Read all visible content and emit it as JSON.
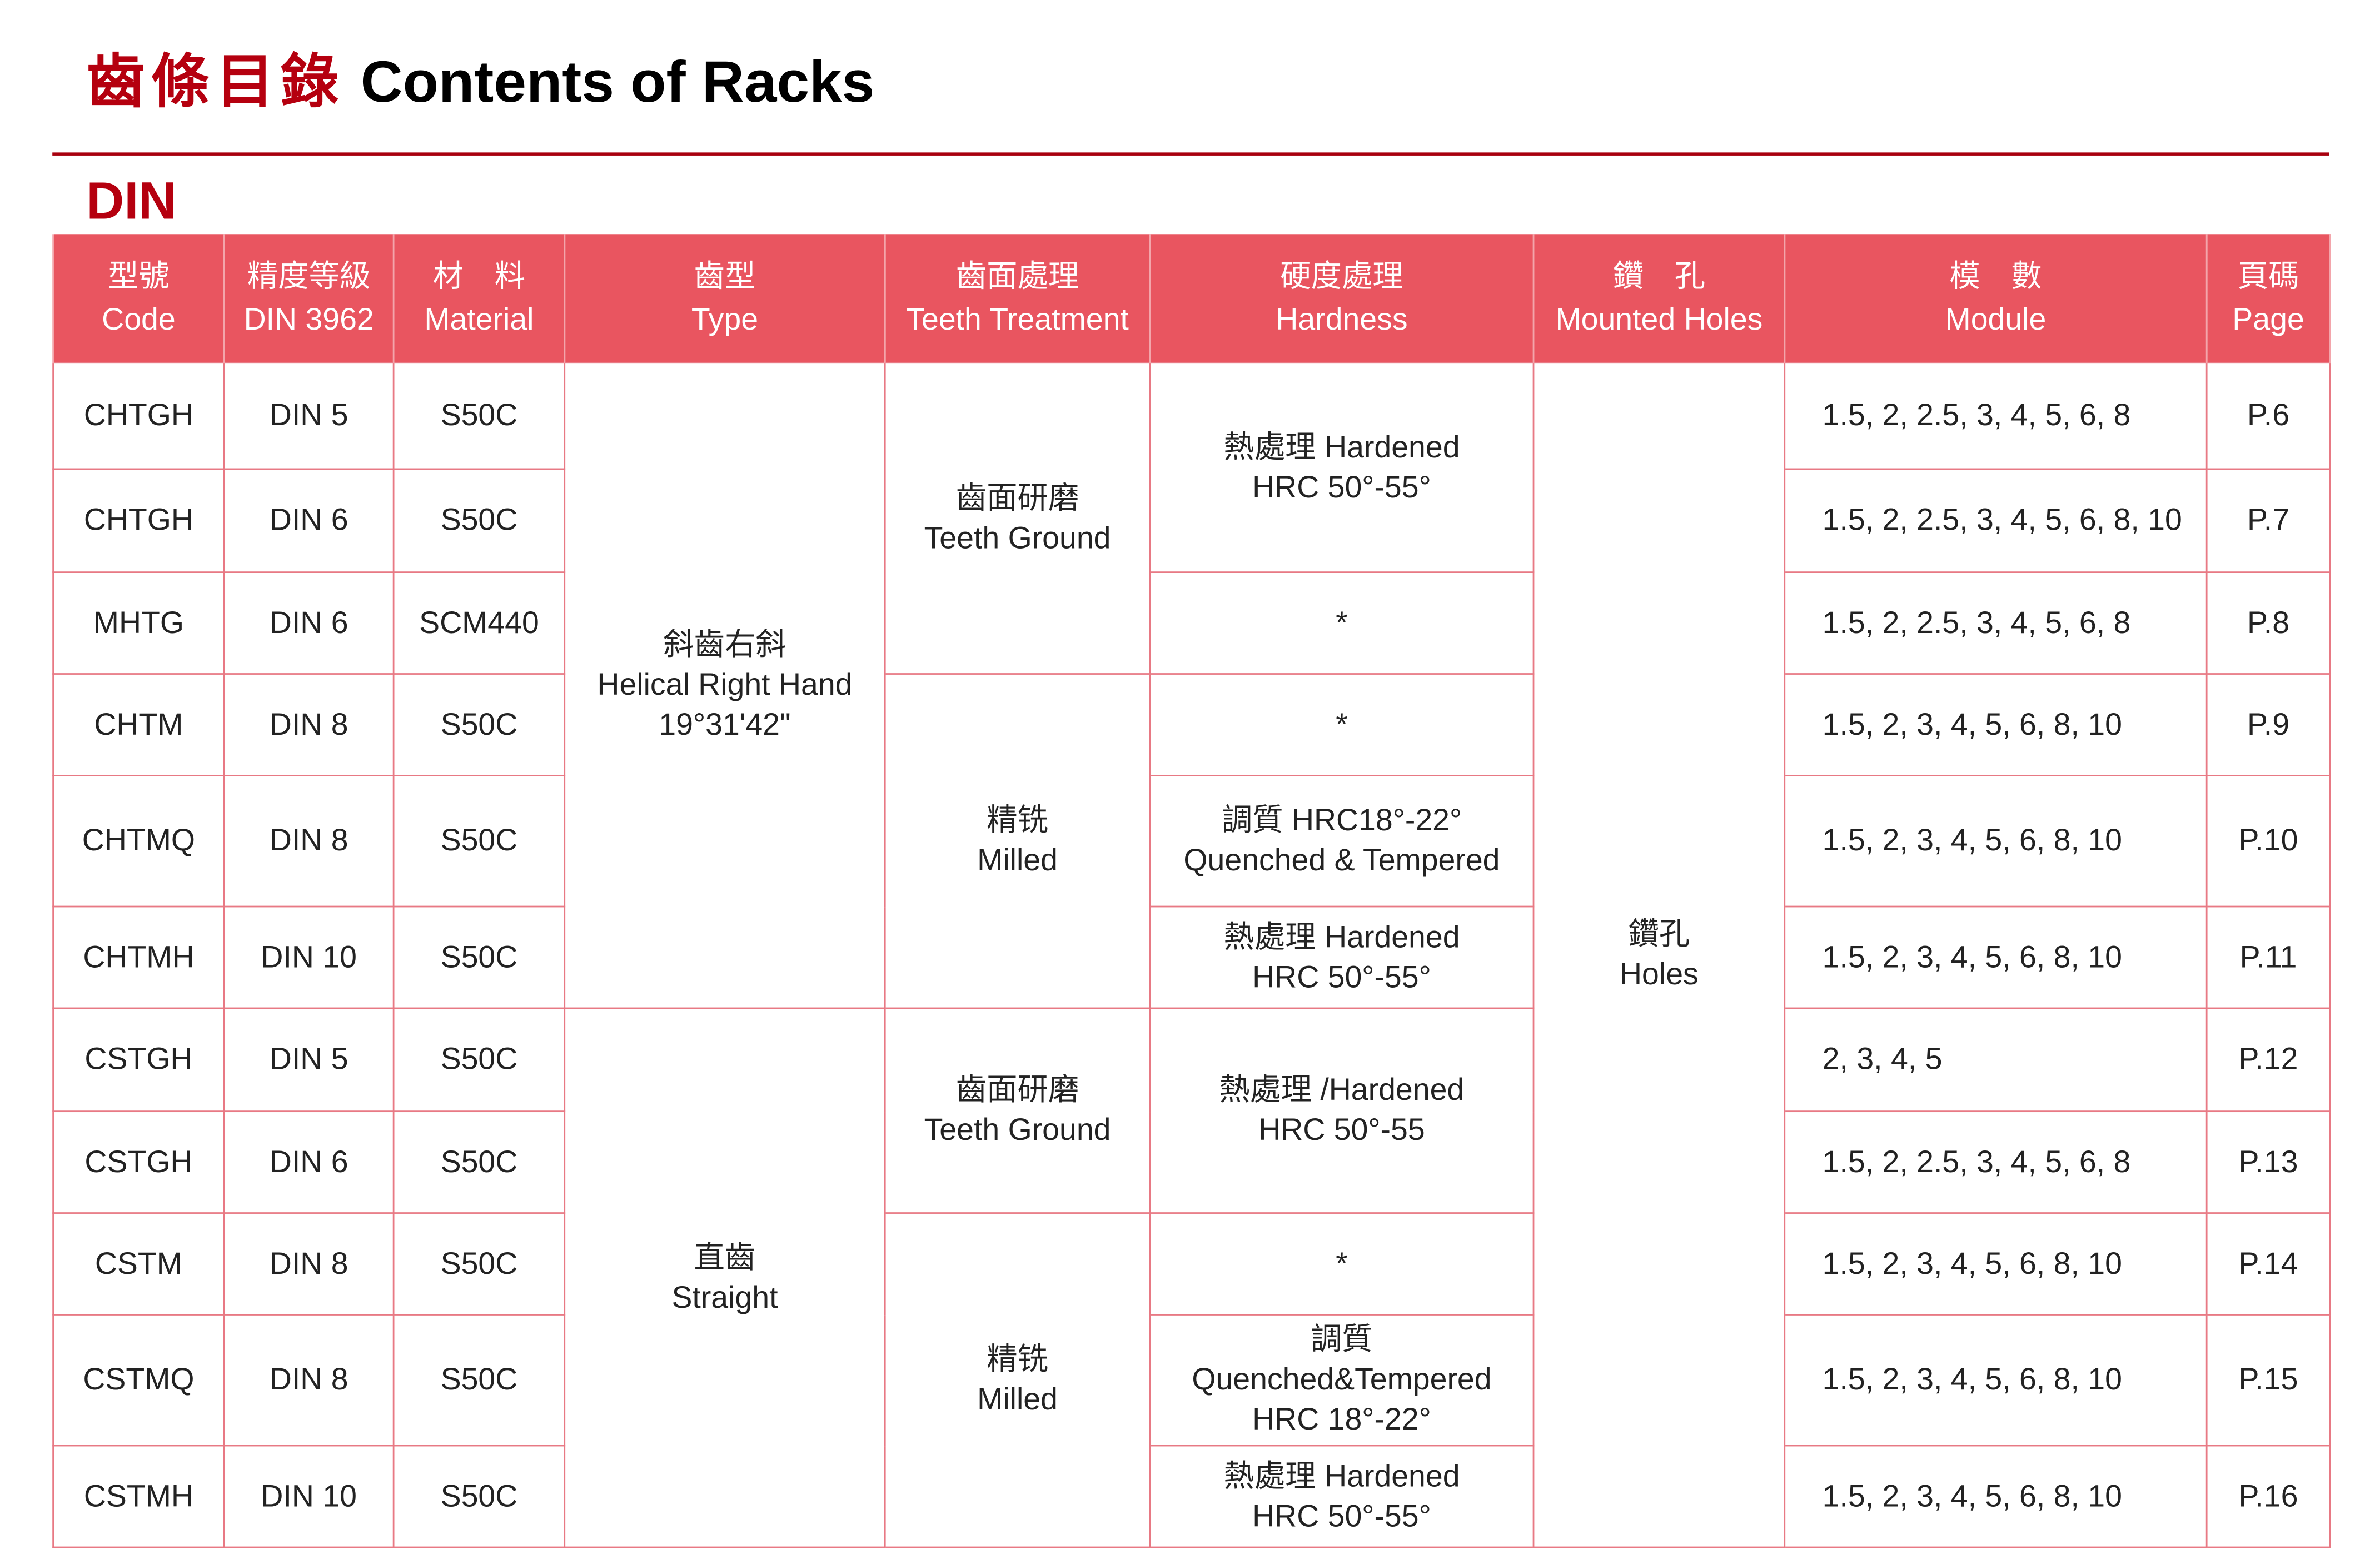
{
  "title": {
    "zh": "齒條目錄",
    "en": "Contents of Racks"
  },
  "section": "DIN",
  "colors": {
    "header_bg": "#e95560",
    "title_red": "#b5000f",
    "rule": "#a8000e",
    "border": "#e87984"
  },
  "headers": [
    {
      "zh": "型號",
      "en": "Code"
    },
    {
      "zh": "精度等級",
      "en": "DIN 3962"
    },
    {
      "zh": "材　料",
      "en": "Material"
    },
    {
      "zh": "齒型",
      "en": "Type"
    },
    {
      "zh": "齒面處理",
      "en": "Teeth Treatment"
    },
    {
      "zh": "硬度處理",
      "en": "Hardness"
    },
    {
      "zh": "鑽　孔",
      "en": "Mounted Holes"
    },
    {
      "zh": "模　數",
      "en": "Module"
    },
    {
      "zh": "頁碼",
      "en": "Page"
    }
  ],
  "rows": [
    {
      "code": "CHTGH",
      "din": "DIN 5",
      "material": "S50C",
      "module": "1.5, 2, 2.5, 3, 4, 5, 6, 8",
      "page": "P.6"
    },
    {
      "code": "CHTGH",
      "din": "DIN 6",
      "material": "S50C",
      "module": "1.5, 2, 2.5, 3, 4, 5, 6, 8, 10",
      "page": "P.7"
    },
    {
      "code": "MHTG",
      "din": "DIN 6",
      "material": "SCM440",
      "module": "1.5, 2, 2.5, 3, 4, 5, 6, 8",
      "page": "P.8"
    },
    {
      "code": "CHTM",
      "din": "DIN 8",
      "material": "S50C",
      "module": "1.5, 2, 3, 4, 5, 6, 8, 10",
      "page": "P.9"
    },
    {
      "code": "CHTMQ",
      "din": "DIN 8",
      "material": "S50C",
      "module": "1.5, 2, 3, 4, 5, 6, 8, 10",
      "page": "P.10"
    },
    {
      "code": "CHTMH",
      "din": "DIN 10",
      "material": "S50C",
      "module": "1.5, 2, 3, 4, 5, 6, 8, 10",
      "page": "P.11"
    },
    {
      "code": "CSTGH",
      "din": "DIN 5",
      "material": "S50C",
      "module": "2, 3, 4, 5",
      "page": "P.12"
    },
    {
      "code": "CSTGH",
      "din": "DIN 6",
      "material": "S50C",
      "module": "1.5, 2, 2.5, 3, 4, 5, 6, 8",
      "page": "P.13"
    },
    {
      "code": "CSTM",
      "din": "DIN 8",
      "material": "S50C",
      "module": "1.5, 2, 3, 4, 5, 6, 8, 10",
      "page": "P.14"
    },
    {
      "code": "CSTMQ",
      "din": "DIN 8",
      "material": "S50C",
      "module": "1.5, 2, 3, 4, 5, 6, 8, 10",
      "page": "P.15"
    },
    {
      "code": "CSTMH",
      "din": "DIN 10",
      "material": "S50C",
      "module": "1.5, 2, 3, 4, 5, 6, 8, 10",
      "page": "P.16"
    }
  ],
  "types": [
    {
      "zh": "斜齒右斜",
      "en": "Helical Right Hand",
      "angle": "19°31'42\""
    },
    {
      "zh": "直齒",
      "en": "Straight"
    }
  ],
  "treatments": [
    {
      "zh": "齒面研磨",
      "en": "Teeth Ground"
    },
    {
      "zh": "精铣",
      "en": "Milled"
    },
    {
      "zh": "齒面研磨",
      "en": "Teeth Ground"
    },
    {
      "zh": "精铣",
      "en": "Milled"
    }
  ],
  "hardness": [
    {
      "l1": "熱處理 Hardened",
      "l2": "HRC 50°-55°"
    },
    {
      "l1": "*"
    },
    {
      "l1": "*"
    },
    {
      "l1": "調質 HRC18°-22°",
      "l2": "Quenched & Tempered"
    },
    {
      "l1": "熱處理 Hardened",
      "l2": "HRC 50°-55°"
    },
    {
      "l1": "熱處理 /Hardened",
      "l2": "HRC 50°-55"
    },
    {
      "l1": "*"
    },
    {
      "l1": "調質",
      "l2": "Quenched&Tempered",
      "l3": "HRC 18°-22°"
    },
    {
      "l1": "熱處理 Hardened",
      "l2": "HRC 50°-55°"
    }
  ],
  "holes": {
    "zh": "鑽孔",
    "en": "Holes"
  }
}
